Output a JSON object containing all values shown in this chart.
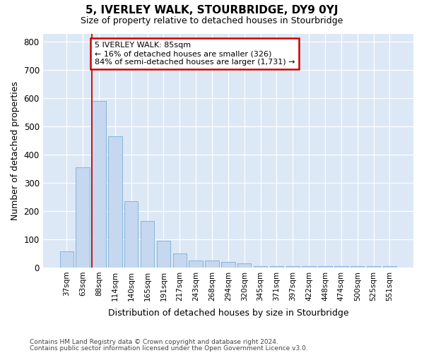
{
  "title": "5, IVERLEY WALK, STOURBRIDGE, DY9 0YJ",
  "subtitle": "Size of property relative to detached houses in Stourbridge",
  "xlabel": "Distribution of detached houses by size in Stourbridge",
  "ylabel": "Number of detached properties",
  "footnote1": "Contains HM Land Registry data © Crown copyright and database right 2024.",
  "footnote2": "Contains public sector information licensed under the Open Government Licence v3.0.",
  "bar_labels": [
    "37sqm",
    "63sqm",
    "88sqm",
    "114sqm",
    "140sqm",
    "165sqm",
    "191sqm",
    "217sqm",
    "243sqm",
    "268sqm",
    "294sqm",
    "320sqm",
    "345sqm",
    "371sqm",
    "397sqm",
    "422sqm",
    "448sqm",
    "474sqm",
    "500sqm",
    "525sqm",
    "551sqm"
  ],
  "bar_values": [
    58,
    355,
    590,
    465,
    235,
    165,
    95,
    50,
    25,
    25,
    20,
    15,
    5,
    5,
    5,
    5,
    5,
    5,
    5,
    5,
    5
  ],
  "bar_color": "#c5d8f0",
  "bar_edge_color": "#7aadd4",
  "fig_bg_color": "#ffffff",
  "ax_bg_color": "#dce8f5",
  "grid_color": "#ffffff",
  "vline_color": "#cc0000",
  "vline_x_index": 2,
  "annotation_line1": "5 IVERLEY WALK: 85sqm",
  "annotation_line2": "← 16% of detached houses are smaller (326)",
  "annotation_line3": "84% of semi-detached houses are larger (1,731) →",
  "annotation_box_facecolor": "#ffffff",
  "annotation_box_edgecolor": "#cc0000",
  "ylim": [
    0,
    830
  ],
  "yticks": [
    0,
    100,
    200,
    300,
    400,
    500,
    600,
    700,
    800
  ]
}
